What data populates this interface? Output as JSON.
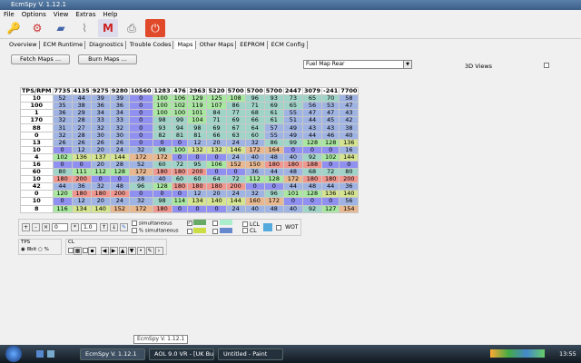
{
  "window": {
    "title": "EcmSpy V. 1.12.1"
  },
  "menu": [
    "File",
    "Options",
    "View",
    "Extras",
    "Help"
  ],
  "toolbar_icons": [
    "keys-icon",
    "settings-tools-icon",
    "chip-icon",
    "cable-icon",
    "logo-icon",
    "printer-icon",
    "power-icon"
  ],
  "tabs": [
    {
      "label": "Overview"
    },
    {
      "label": "ECM Runtime"
    },
    {
      "label": "Diagnostics"
    },
    {
      "label": "Trouble Codes"
    },
    {
      "label": "Maps",
      "active": true
    },
    {
      "label": "Other Maps"
    },
    {
      "label": "EEPROM"
    },
    {
      "label": "ECM Config"
    }
  ],
  "buttons": {
    "fetch": "Fetch Maps ...",
    "burn": "Burn Maps ..."
  },
  "map_select": {
    "value": "Fuel Map Rear"
  },
  "views3d": {
    "label": "3D Views",
    "checked": false
  },
  "table": {
    "corner": "TPS/RPM",
    "columns": [
      "7735",
      "4135",
      "9275",
      "9280",
      "10560",
      "1283",
      "476",
      "2963",
      "5220",
      "5700",
      "5700",
      "5700",
      "2447",
      "3079",
      "-241",
      "7700"
    ],
    "rows": [
      {
        "h": "10",
        "v": [
          52,
          44,
          39,
          39,
          0,
          100,
          106,
          129,
          125,
          108,
          96,
          93,
          73,
          65,
          70,
          58
        ]
      },
      {
        "h": "100",
        "v": [
          35,
          38,
          36,
          36,
          0,
          100,
          102,
          119,
          107,
          86,
          71,
          69,
          65,
          56,
          53,
          47
        ]
      },
      {
        "h": "1",
        "v": [
          36,
          29,
          34,
          34,
          0,
          100,
          100,
          101,
          84,
          77,
          68,
          61,
          55,
          47,
          47,
          43
        ]
      },
      {
        "h": "170",
        "v": [
          32,
          28,
          33,
          33,
          0,
          98,
          99,
          104,
          71,
          69,
          66,
          61,
          51,
          44,
          45,
          42
        ]
      },
      {
        "h": "88",
        "v": [
          31,
          27,
          32,
          32,
          0,
          93,
          94,
          98,
          69,
          67,
          64,
          57,
          49,
          43,
          43,
          38
        ]
      },
      {
        "h": "0",
        "v": [
          32,
          28,
          30,
          30,
          0,
          82,
          81,
          81,
          66,
          63,
          60,
          55,
          49,
          44,
          46,
          40
        ]
      },
      {
        "h": "13",
        "v": [
          26,
          26,
          26,
          26,
          0,
          0,
          0,
          12,
          20,
          24,
          32,
          86,
          99,
          128,
          128,
          136
        ]
      },
      {
        "h": "10",
        "v": [
          0,
          12,
          20,
          24,
          32,
          98,
          100,
          132,
          132,
          146,
          172,
          164,
          0,
          0,
          0,
          16
        ]
      },
      {
        "h": "4",
        "v": [
          102,
          136,
          137,
          144,
          172,
          172,
          0,
          0,
          0,
          24,
          40,
          48,
          40,
          92,
          102,
          144
        ]
      },
      {
        "h": "16",
        "v": [
          0,
          0,
          20,
          28,
          52,
          60,
          72,
          95,
          106,
          152,
          150,
          180,
          180,
          188,
          0,
          0
        ]
      },
      {
        "h": "60",
        "v": [
          80,
          111,
          112,
          128,
          172,
          180,
          180,
          200,
          0,
          0,
          36,
          44,
          48,
          68,
          72,
          80
        ]
      },
      {
        "h": "10",
        "v": [
          180,
          200,
          0,
          0,
          28,
          40,
          60,
          60,
          64,
          72,
          112,
          128,
          172,
          180,
          180,
          200
        ]
      },
      {
        "h": "42",
        "v": [
          44,
          36,
          32,
          48,
          96,
          128,
          180,
          180,
          180,
          200,
          0,
          0,
          44,
          48,
          44,
          36
        ]
      },
      {
        "h": "0",
        "v": [
          120,
          180,
          180,
          200,
          0,
          0,
          0,
          12,
          20,
          24,
          32,
          96,
          101,
          128,
          136,
          140
        ]
      },
      {
        "h": "10",
        "v": [
          0,
          12,
          20,
          24,
          32,
          98,
          114,
          134,
          140,
          144,
          160,
          172,
          0,
          0,
          0,
          56
        ]
      },
      {
        "h": "8",
        "v": [
          116,
          134,
          140,
          152,
          172,
          180,
          0,
          0,
          0,
          24,
          40,
          48,
          40,
          92,
          127,
          154
        ]
      }
    ]
  },
  "controls": {
    "step1": "0",
    "step2": "1.0",
    "simultaneous": "simultaneous",
    "pct_simultaneous": "% simultaneous",
    "lcl": "LCL",
    "cl": "CL",
    "wot": "WOT",
    "tps_group": "TPS",
    "tps_opt1": "8bit",
    "tps_opt2": "%",
    "cl_group": "CL"
  },
  "taskbar": {
    "tooltip": "EcmSpy V. 1.12.1",
    "tasks": [
      "EcmSpy V. 1.12.1",
      "AOL 9.0 VR - [UK Bu...",
      "Untitled - Paint"
    ],
    "clock": "13:55"
  },
  "colors": {
    "zero": "#9090f0",
    "low": "#a0b4e4",
    "mid": "#a0d4c8",
    "green": "#a8e8a0",
    "yellow": "#d4e490",
    "orange": "#e8b890",
    "red": "#f09890"
  }
}
